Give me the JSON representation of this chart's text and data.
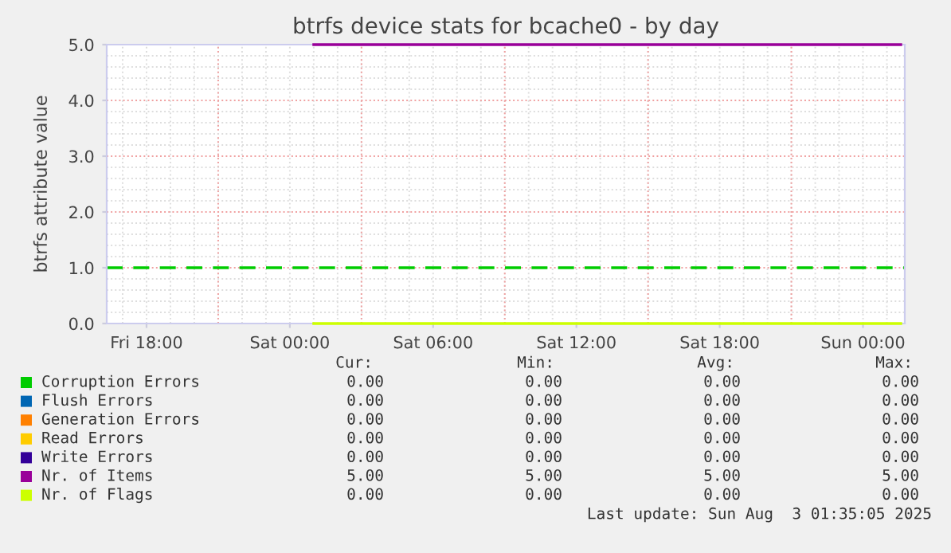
{
  "chart_data": {
    "type": "line",
    "title": "btrfs device stats for bcache0 - by day",
    "ylabel": "btrfs attribute value",
    "x": [
      "2025-08-02T01:00",
      "2025-08-03T01:35"
    ],
    "series": [
      {
        "name": "Corruption Errors",
        "color": "#00cc00",
        "values": [
          null,
          null
        ]
      },
      {
        "name": "Flush Errors",
        "color": "#0066b3",
        "values": [
          null,
          null
        ]
      },
      {
        "name": "Generation Errors",
        "color": "#ff8000",
        "values": [
          null,
          null
        ]
      },
      {
        "name": "Read Errors",
        "color": "#ffcc00",
        "values": [
          null,
          null
        ]
      },
      {
        "name": "Write Errors",
        "color": "#330099",
        "values": [
          null,
          null
        ]
      },
      {
        "name": "Nr. of Items",
        "color": "#990099",
        "values": [
          5,
          5
        ]
      },
      {
        "name": "Nr. of Flags",
        "color": "#ccff00",
        "values": [
          0,
          0
        ]
      }
    ],
    "xlim": [
      "2025-08-01T16:20",
      "2025-08-03T01:45"
    ],
    "xticks": [
      {
        "value": "2025-08-01T18:00",
        "label": "Fri 18:00"
      },
      {
        "value": "2025-08-02T00:00",
        "label": "Sat 00:00"
      },
      {
        "value": "2025-08-02T06:00",
        "label": "Sat 06:00"
      },
      {
        "value": "2025-08-02T12:00",
        "label": "Sat 12:00"
      },
      {
        "value": "2025-08-02T18:00",
        "label": "Sat 18:00"
      },
      {
        "value": "2025-08-03T00:00",
        "label": "Sun 00:00"
      }
    ],
    "ylim": [
      0,
      5
    ],
    "yticks": [
      {
        "value": 0,
        "label": "0.0"
      },
      {
        "value": 1,
        "label": "1.0"
      },
      {
        "value": 2,
        "label": "2.0"
      },
      {
        "value": 3,
        "label": "3.0"
      },
      {
        "value": 4,
        "label": "4.0"
      },
      {
        "value": 5,
        "label": "5.0"
      }
    ],
    "ref_lines": [
      {
        "axis": "y",
        "value": 1,
        "label": null,
        "color": "#00cc00",
        "line_style": "dashed"
      }
    ],
    "grid": true,
    "legend": "bottom",
    "marker": "none",
    "line_style": "solid",
    "annotations": [
      "Cur:",
      "Min:",
      "Avg:",
      "Max:",
      "0.00",
      "0.00",
      "0.00",
      "0.00",
      "0.00",
      "0.00",
      "0.00",
      "0.00",
      "0.00",
      "0.00",
      "0.00",
      "0.00",
      "0.00",
      "0.00",
      "0.00",
      "0.00",
      "0.00",
      "0.00",
      "0.00",
      "0.00",
      "5.00",
      "5.00",
      "5.00",
      "5.00",
      "0.00",
      "0.00",
      "0.00",
      "0.00",
      "Last update: Sun Aug  3 01:35:05 2025"
    ]
  }
}
